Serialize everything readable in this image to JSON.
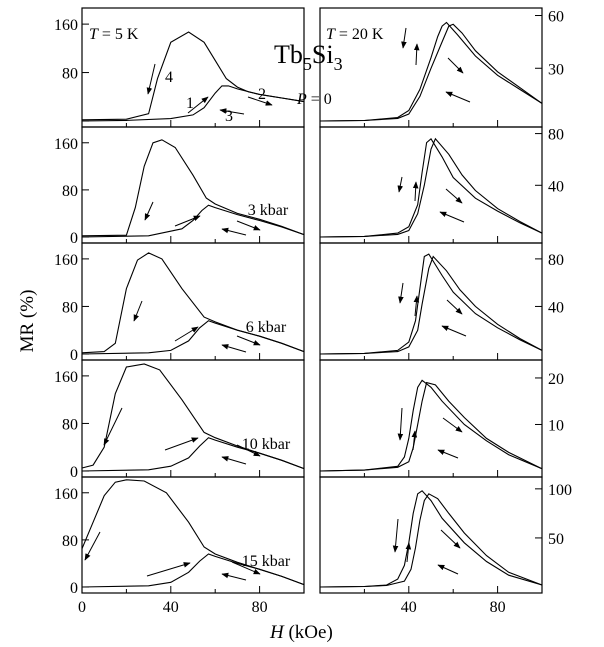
{
  "figure": {
    "compound_title": {
      "base1": "Tb",
      "sub1": "5",
      "base2": "Si",
      "sub2": "3"
    },
    "pressure_zero": {
      "var": "P",
      "rest": " = 0"
    },
    "temp_left": {
      "var": "T",
      "rest": " = 5 K"
    },
    "temp_right": {
      "var": "T",
      "rest": " = 20 K"
    },
    "xlabel": {
      "var": "H",
      "rest": " (kOe)"
    },
    "ylabel": "MR (%)",
    "x_ticks": [
      "0",
      "40",
      "80"
    ],
    "branch_labels": [
      "1",
      "2",
      "3",
      "4"
    ],
    "colors": {
      "line": "#000000",
      "background": "#ffffff"
    }
  },
  "chart_data": [
    {
      "type": "line",
      "panel": "P = 0, T = 5 K",
      "xlim": [
        0,
        100
      ],
      "ylim": [
        0,
        180
      ],
      "y_ticks": [
        0,
        80,
        160
      ],
      "y_tick_labels": [
        "",
        "80",
        "160"
      ],
      "series": [
        {
          "x": [
            0,
            20,
            30,
            34,
            40,
            48,
            55,
            60,
            65,
            70,
            75,
            80,
            90,
            100
          ],
          "y": [
            2,
            3,
            12,
            70,
            130,
            147,
            130,
            100,
            70,
            56,
            48,
            44,
            38,
            32
          ]
        },
        {
          "x": [
            0,
            20,
            40,
            50,
            55,
            60,
            63,
            66,
            70,
            80,
            90,
            100
          ],
          "y": [
            0,
            1,
            4,
            10,
            22,
            46,
            58,
            58,
            53,
            44,
            38,
            32
          ]
        }
      ]
    },
    {
      "type": "line",
      "panel": "3 kbar, T = 5 K",
      "xlim": [
        0,
        100
      ],
      "ylim": [
        0,
        180
      ],
      "y_ticks": [
        0,
        80,
        160
      ],
      "y_tick_labels": [
        "0",
        "80",
        "160"
      ],
      "series": [
        {
          "x": [
            0,
            20,
            24,
            28,
            32,
            36,
            42,
            50,
            56,
            60,
            70,
            80,
            90,
            100
          ],
          "y": [
            2,
            3,
            50,
            120,
            160,
            165,
            152,
            105,
            66,
            56,
            40,
            30,
            18,
            4
          ]
        },
        {
          "x": [
            0,
            30,
            45,
            50,
            54,
            57,
            60,
            70,
            80,
            90,
            100
          ],
          "y": [
            0,
            2,
            14,
            28,
            45,
            54,
            50,
            38,
            28,
            17,
            4
          ]
        }
      ]
    },
    {
      "type": "line",
      "panel": "6 kbar, T = 5 K",
      "xlim": [
        0,
        100
      ],
      "ylim": [
        0,
        180
      ],
      "y_ticks": [
        0,
        80,
        160
      ],
      "y_tick_labels": [
        "0",
        "80",
        "160"
      ],
      "series": [
        {
          "x": [
            0,
            10,
            15,
            20,
            25,
            30,
            36,
            45,
            55,
            60,
            70,
            80,
            90,
            100
          ],
          "y": [
            2,
            4,
            18,
            110,
            158,
            170,
            160,
            110,
            62,
            54,
            40,
            30,
            18,
            4
          ]
        },
        {
          "x": [
            0,
            30,
            40,
            48,
            53,
            57,
            60,
            70,
            80,
            90,
            100
          ],
          "y": [
            0,
            2,
            6,
            22,
            44,
            56,
            52,
            40,
            30,
            18,
            4
          ]
        }
      ]
    },
    {
      "type": "line",
      "panel": "10 kbar, T = 5 K",
      "xlim": [
        0,
        100
      ],
      "ylim": [
        0,
        180
      ],
      "y_ticks": [
        0,
        80,
        160
      ],
      "y_tick_labels": [
        "0",
        "80",
        "160"
      ],
      "series": [
        {
          "x": [
            0,
            5,
            10,
            15,
            20,
            28,
            35,
            45,
            55,
            60,
            70,
            80,
            90,
            100
          ],
          "y": [
            5,
            10,
            40,
            130,
            175,
            180,
            170,
            120,
            65,
            56,
            42,
            30,
            18,
            4
          ]
        },
        {
          "x": [
            0,
            30,
            40,
            48,
            53,
            57,
            60,
            70,
            80,
            90,
            100
          ],
          "y": [
            0,
            2,
            8,
            22,
            42,
            56,
            52,
            40,
            30,
            18,
            4
          ]
        }
      ]
    },
    {
      "type": "line",
      "panel": "15 kbar, T = 5 K",
      "xlim": [
        0,
        100
      ],
      "ylim": [
        0,
        180
      ],
      "y_ticks": [
        0,
        80,
        160
      ],
      "y_tick_labels": [
        "0",
        "80",
        "160"
      ],
      "series": [
        {
          "x": [
            0,
            5,
            10,
            15,
            20,
            28,
            38,
            48,
            55,
            60,
            70,
            80,
            90,
            100
          ],
          "y": [
            65,
            110,
            155,
            178,
            182,
            180,
            160,
            110,
            68,
            56,
            42,
            30,
            18,
            4
          ]
        },
        {
          "x": [
            0,
            30,
            40,
            48,
            53,
            57,
            60,
            70,
            80,
            90,
            100
          ],
          "y": [
            0,
            2,
            8,
            25,
            44,
            56,
            52,
            40,
            30,
            18,
            4
          ]
        }
      ]
    },
    {
      "type": "line",
      "panel": "P = 0, T = 20 K",
      "xlim": [
        0,
        100
      ],
      "ylim": [
        0,
        62
      ],
      "y_ticks": [
        30,
        60
      ],
      "y_tick_labels": [
        "30",
        "60"
      ],
      "series": [
        {
          "x": [
            0,
            20,
            35,
            40,
            45,
            50,
            53,
            55,
            57,
            62,
            70,
            80,
            90,
            100
          ],
          "y": [
            0,
            0.3,
            2,
            6,
            18,
            36,
            48,
            54,
            56,
            49,
            37,
            26,
            18,
            10
          ]
        },
        {
          "x": [
            0,
            20,
            35,
            40,
            45,
            50,
            55,
            58,
            60,
            64,
            70,
            80,
            90,
            100
          ],
          "y": [
            0,
            0.3,
            1.5,
            4,
            14,
            30,
            45,
            54,
            55,
            50,
            40,
            28,
            19,
            10
          ]
        }
      ]
    },
    {
      "type": "line",
      "panel": "3 kbar, T = 20 K",
      "xlim": [
        0,
        100
      ],
      "ylim": [
        0,
        82
      ],
      "y_ticks": [
        40,
        80
      ],
      "y_tick_labels": [
        "40",
        "80"
      ],
      "series": [
        {
          "x": [
            0,
            20,
            35,
            40,
            44,
            46,
            48,
            50,
            55,
            60,
            70,
            80,
            90,
            100
          ],
          "y": [
            0,
            0.5,
            3,
            8,
            25,
            50,
            73,
            76,
            62,
            46,
            30,
            20,
            11,
            3
          ]
        },
        {
          "x": [
            0,
            20,
            35,
            40,
            44,
            47,
            50,
            52,
            58,
            64,
            70,
            80,
            90,
            100
          ],
          "y": [
            0,
            0.5,
            2,
            5,
            18,
            40,
            68,
            76,
            64,
            48,
            36,
            22,
            12,
            3
          ]
        }
      ]
    },
    {
      "type": "line",
      "panel": "6 kbar, T = 20 K",
      "xlim": [
        0,
        100
      ],
      "ylim": [
        0,
        90
      ],
      "y_ticks": [
        40,
        80
      ],
      "y_tick_labels": [
        "40",
        "80"
      ],
      "series": [
        {
          "x": [
            0,
            20,
            35,
            40,
            43,
            45,
            47,
            49,
            55,
            60,
            70,
            80,
            90,
            100
          ],
          "y": [
            0,
            0.5,
            3,
            10,
            28,
            55,
            82,
            84,
            66,
            52,
            34,
            22,
            12,
            3
          ]
        },
        {
          "x": [
            0,
            20,
            35,
            40,
            44,
            46,
            49,
            51,
            57,
            63,
            70,
            80,
            90,
            100
          ],
          "y": [
            0,
            0.5,
            2,
            6,
            20,
            42,
            72,
            82,
            70,
            54,
            40,
            25,
            13,
            3
          ]
        }
      ]
    },
    {
      "type": "line",
      "panel": "10 kbar, T = 20 K",
      "xlim": [
        0,
        100
      ],
      "ylim": [
        0,
        23
      ],
      "y_ticks": [
        10,
        20
      ],
      "y_tick_labels": [
        "10",
        "20"
      ],
      "series": [
        {
          "x": [
            0,
            20,
            35,
            38,
            40,
            42,
            44,
            46,
            50,
            55,
            65,
            75,
            85,
            100
          ],
          "y": [
            0,
            0.2,
            1,
            3,
            7,
            13,
            18,
            19.5,
            18,
            15,
            10,
            6.5,
            3.5,
            0.5
          ]
        },
        {
          "x": [
            0,
            20,
            35,
            40,
            42,
            44,
            46,
            48,
            52,
            58,
            65,
            75,
            85,
            100
          ],
          "y": [
            0,
            0.2,
            0.8,
            2,
            5,
            10,
            15,
            19,
            18.5,
            15,
            11.5,
            7,
            4,
            0.5
          ]
        }
      ]
    },
    {
      "type": "line",
      "panel": "15 kbar, T = 20 K",
      "xlim": [
        0,
        100
      ],
      "ylim": [
        0,
        108
      ],
      "y_ticks": [
        50,
        100
      ],
      "y_tick_labels": [
        "50",
        "100"
      ],
      "series": [
        {
          "x": [
            0,
            20,
            30,
            35,
            38,
            40,
            42,
            44,
            46,
            50,
            55,
            65,
            75,
            85,
            100
          ],
          "y": [
            0,
            0.5,
            2,
            8,
            22,
            45,
            75,
            95,
            98,
            88,
            70,
            45,
            26,
            12,
            2
          ]
        },
        {
          "x": [
            0,
            20,
            30,
            38,
            41,
            43,
            45,
            47,
            49,
            53,
            58,
            65,
            75,
            85,
            100
          ],
          "y": [
            0,
            0.5,
            1.5,
            6,
            18,
            40,
            68,
            88,
            95,
            90,
            75,
            55,
            32,
            15,
            2
          ]
        }
      ]
    }
  ]
}
